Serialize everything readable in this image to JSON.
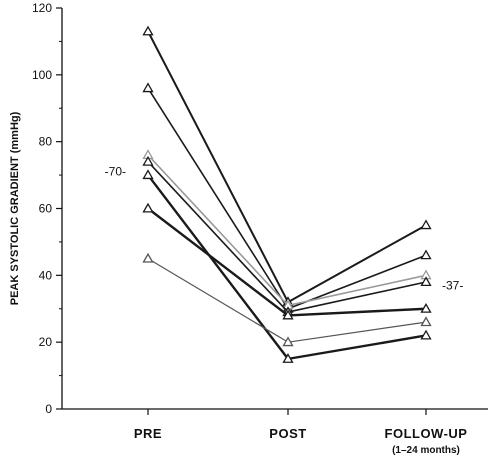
{
  "chart_data": {
    "type": "line",
    "categories": [
      "PRE",
      "POST",
      "FOLLOW-UP"
    ],
    "category_sublabels": [
      "",
      "",
      "(1–24 months)"
    ],
    "ylabel": "PEAK SYSTOLIC GRADIENT (mmHg)",
    "xlabel": "",
    "title": "",
    "ylim": [
      0,
      120
    ],
    "yticks": [
      0,
      20,
      40,
      60,
      80,
      100,
      120
    ],
    "grid": false,
    "marker": "triangle",
    "series": [
      {
        "values": [
          113,
          32,
          55
        ],
        "color": "#1a1a1a",
        "width": 2
      },
      {
        "values": [
          96,
          30,
          46
        ],
        "color": "#1a1a1a",
        "width": 1.6
      },
      {
        "values": [
          76,
          31,
          40
        ],
        "color": "#9a9a9a",
        "width": 1.6
      },
      {
        "values": [
          74,
          29,
          38
        ],
        "color": "#1a1a1a",
        "width": 1.6
      },
      {
        "values": [
          70,
          15,
          22
        ],
        "color": "#1a1a1a",
        "width": 2.4
      },
      {
        "values": [
          60,
          28,
          30
        ],
        "color": "#1a1a1a",
        "width": 2.4
      },
      {
        "values": [
          45,
          20,
          26
        ],
        "color": "#555555",
        "width": 1.2
      }
    ],
    "annotations": [
      {
        "text": "-70-",
        "category_index": 0,
        "y": 71,
        "side": "left"
      },
      {
        "text": "-37-",
        "category_index": 2,
        "y": 37,
        "side": "right"
      }
    ]
  }
}
